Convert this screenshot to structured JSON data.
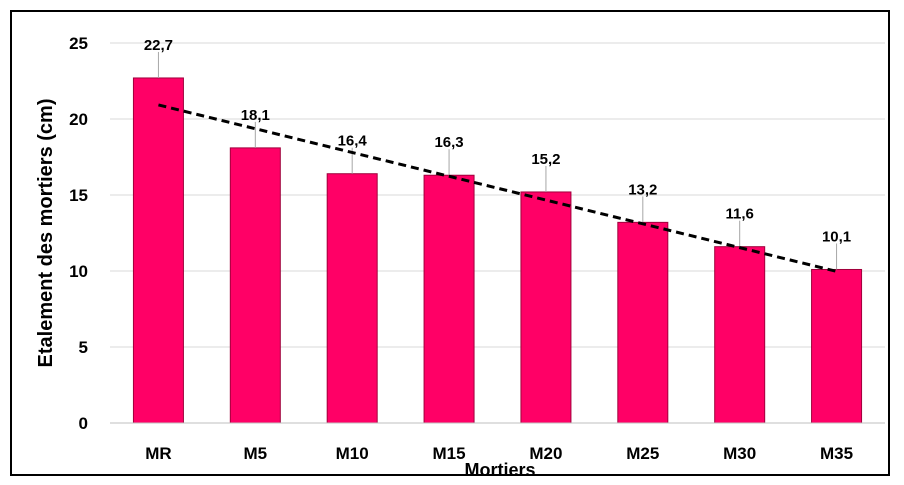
{
  "chart_data": {
    "type": "bar",
    "title": "",
    "xlabel": "Mortiers",
    "ylabel": "Etalement des mortiers (cm)",
    "categories": [
      "MR",
      "M5",
      "M10",
      "M15",
      "M20",
      "M25",
      "M30",
      "M35"
    ],
    "values": [
      22.7,
      18.1,
      16.4,
      16.3,
      15.2,
      13.2,
      11.6,
      10.1
    ],
    "data_labels": [
      "22,7",
      "18,1",
      "16,4",
      "16,3",
      "15,2",
      "13,2",
      "11,6",
      "10,1"
    ],
    "ylim": [
      0,
      25
    ],
    "yticks": [
      0,
      5,
      10,
      15,
      20,
      25
    ],
    "grid": true,
    "bar_color": "#ff0066",
    "bar_edge_color": "#a0003c",
    "trendline": {
      "type": "linear",
      "style": "dashed",
      "color": "#000000"
    }
  }
}
